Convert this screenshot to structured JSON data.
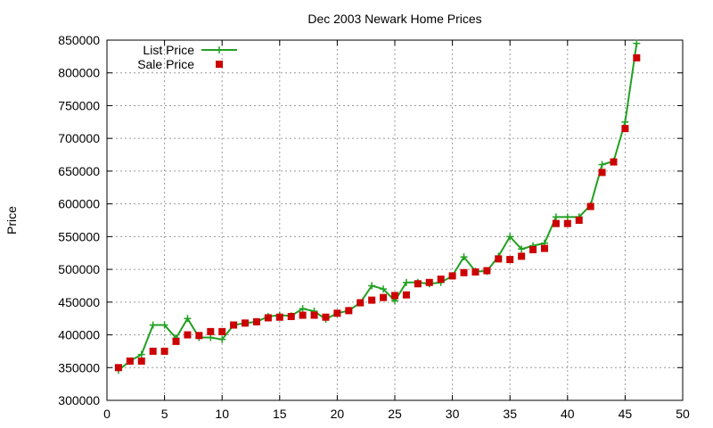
{
  "chart_data": {
    "type": "line",
    "title": "Dec 2003 Newark Home Prices",
    "xlabel": "",
    "ylabel": "Price",
    "xlim": [
      0,
      50
    ],
    "ylim": [
      300000,
      850000
    ],
    "x_ticks": [
      0,
      5,
      10,
      15,
      20,
      25,
      30,
      35,
      40,
      45,
      50
    ],
    "y_ticks": [
      300000,
      350000,
      400000,
      450000,
      500000,
      550000,
      600000,
      650000,
      700000,
      750000,
      800000,
      850000
    ],
    "x_tick_labels": [
      "0",
      "5",
      "10",
      "15",
      "20",
      "25",
      "30",
      "35",
      "40",
      "45",
      "50"
    ],
    "y_tick_labels": [
      "300000",
      "350000",
      "400000",
      "450000",
      "500000",
      "550000",
      "600000",
      "650000",
      "700000",
      "750000",
      "800000",
      "850000"
    ],
    "grid": true,
    "legend_position": "top-left",
    "series": [
      {
        "name": "List Price",
        "style": "line+plus",
        "color": "#22a022",
        "x": [
          1,
          2,
          3,
          4,
          5,
          6,
          7,
          8,
          9,
          10,
          11,
          12,
          13,
          14,
          15,
          16,
          17,
          18,
          19,
          20,
          21,
          22,
          23,
          24,
          25,
          26,
          27,
          28,
          29,
          30,
          31,
          32,
          33,
          34,
          35,
          36,
          37,
          38,
          39,
          40,
          41,
          42,
          43,
          44,
          45,
          46
        ],
        "values": [
          346000,
          360000,
          370000,
          415000,
          415000,
          395000,
          425000,
          396000,
          396000,
          393000,
          415000,
          418000,
          420000,
          428000,
          430000,
          429000,
          440000,
          436000,
          424000,
          433000,
          437000,
          449000,
          475000,
          470000,
          452000,
          480000,
          480000,
          478000,
          480000,
          490000,
          519000,
          497000,
          497000,
          520000,
          550000,
          531000,
          536000,
          540000,
          580000,
          580000,
          580000,
          598000,
          660000,
          665000,
          725000,
          845000
        ]
      },
      {
        "name": "Sale Price",
        "style": "square-points",
        "color": "#cc0000",
        "x": [
          1,
          2,
          3,
          4,
          5,
          6,
          7,
          8,
          9,
          10,
          11,
          12,
          13,
          14,
          15,
          16,
          17,
          18,
          19,
          20,
          21,
          22,
          23,
          24,
          25,
          26,
          27,
          28,
          29,
          30,
          31,
          32,
          33,
          34,
          35,
          36,
          37,
          38,
          39,
          40,
          41,
          42,
          43,
          44,
          45,
          46
        ],
        "values": [
          350000,
          360000,
          360000,
          375000,
          375000,
          390000,
          400000,
          399000,
          405000,
          405000,
          415000,
          418000,
          420000,
          426000,
          427000,
          428000,
          430000,
          430000,
          427000,
          433000,
          437000,
          449000,
          453000,
          457000,
          460000,
          461000,
          478000,
          480000,
          485000,
          490000,
          495000,
          496000,
          498000,
          516000,
          515000,
          520000,
          530000,
          532000,
          570000,
          570000,
          575000,
          596000,
          648000,
          664000,
          715000,
          823000
        ]
      }
    ]
  }
}
